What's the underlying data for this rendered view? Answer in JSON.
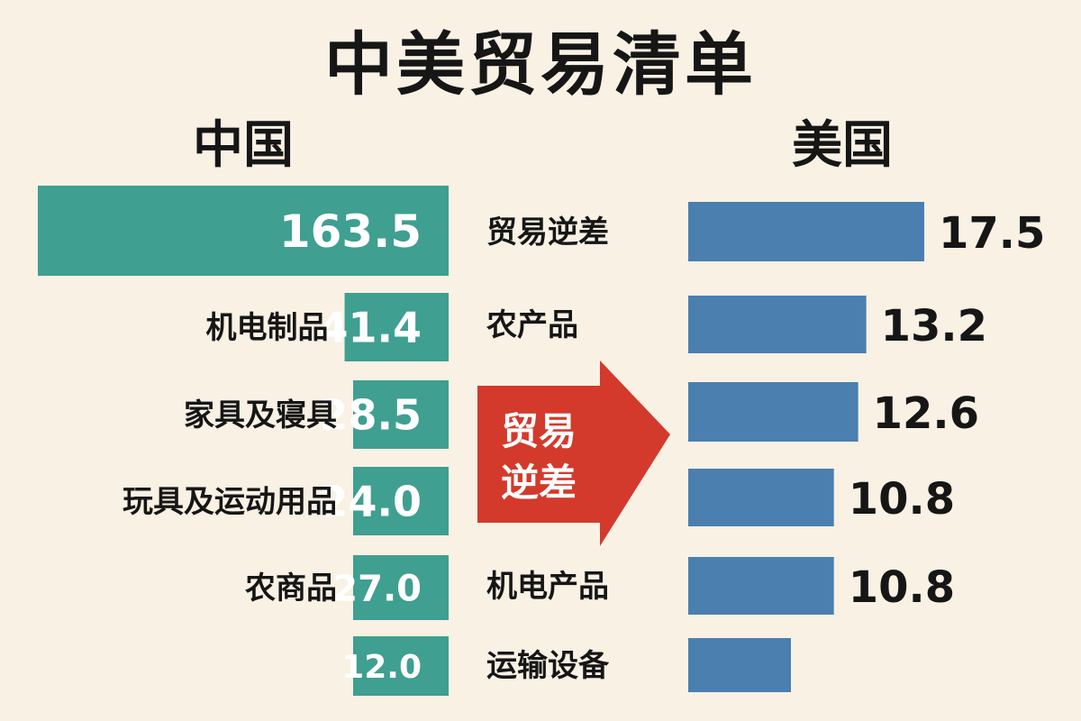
{
  "title": "中美贸易清单",
  "colors": {
    "background": "#f8f1e4",
    "china_bar": "#3f9f90",
    "us_bar": "#4a7fb0",
    "arrow": "#d33a2c",
    "text": "#161616",
    "bar_text": "#ffffff"
  },
  "chart_data": [
    {
      "type": "bar",
      "orientation": "horizontal",
      "name": "中国",
      "title": "中国",
      "categories": [
        "",
        "机电制品",
        "家具及寝具",
        "玩具及运动用品",
        "农商品",
        ""
      ],
      "values": [
        163.5,
        41.4,
        28.5,
        24.0,
        27.0,
        12.0
      ],
      "value_labels": [
        "163.5",
        "41.4",
        "28.5",
        "24.0",
        "27.0",
        "12.0"
      ],
      "direction": "right-to-left",
      "xlim": [
        0,
        163.5
      ]
    },
    {
      "type": "bar",
      "orientation": "horizontal",
      "name": "美国",
      "title": "美国",
      "categories": [
        "贸易逆差",
        "农产品",
        "",
        "",
        "机电产品",
        "运输设备"
      ],
      "values": [
        17.5,
        13.2,
        12.6,
        10.8,
        10.8,
        null
      ],
      "value_labels": [
        "17.5",
        "13.2",
        "12.6",
        "10.8",
        "10.8",
        ""
      ],
      "direction": "left-to-right",
      "xlim": [
        0,
        17.5
      ]
    }
  ],
  "arrow_label": [
    "贸易",
    "逆差"
  ]
}
